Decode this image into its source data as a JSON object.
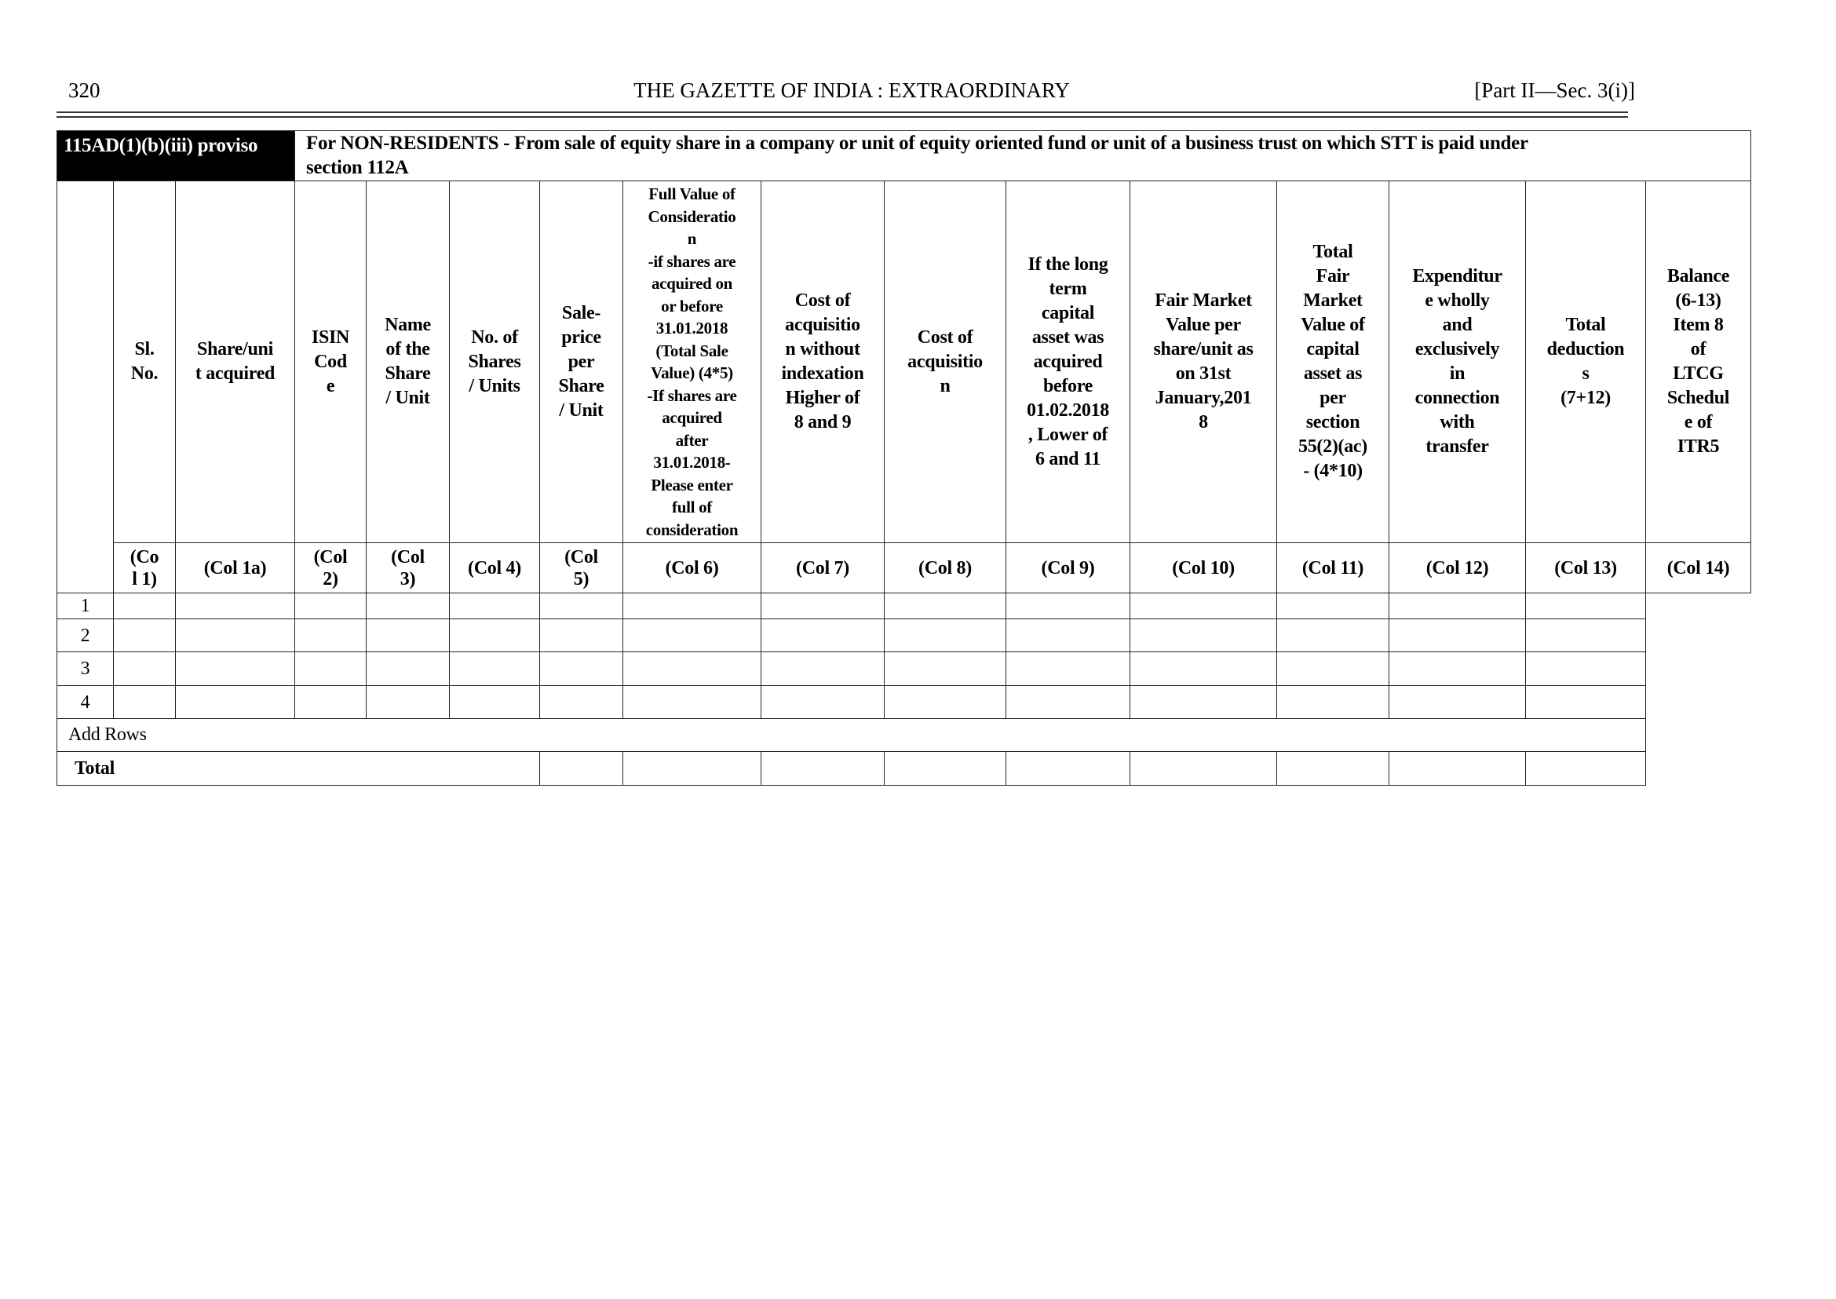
{
  "page_header": {
    "page_number": "320",
    "title": "THE GAZETTE OF INDIA : EXTRAORDINARY",
    "part": "[Part II—Sec. 3(i)]"
  },
  "schedule": {
    "section": "115AD(1)(b)(iii) proviso",
    "description": "For NON-RESIDENTS - From sale of equity share in a company or unit of equity oriented fund or unit of a business trust on which STT is paid under\nsection 112A",
    "columns": [
      {
        "header": "Sl.\nNo.",
        "code": "(Co\nl 1)"
      },
      {
        "header": "Share/uni\nt acquired",
        "code": "(Col 1a)"
      },
      {
        "header": "ISIN\nCod\ne",
        "code": "(Col\n2)"
      },
      {
        "header": "Name\nof the\nShare\n/ Unit",
        "code": "(Col\n3)"
      },
      {
        "header": "No. of\nShares\n/ Units",
        "code": "(Col 4)"
      },
      {
        "header": "Sale-\nprice\nper\nShare\n/ Unit",
        "code": "(Col\n5)"
      },
      {
        "header": "Full Value of\nConsideratio\nn\n-if shares are\nacquired on\nor before\n31.01.2018\n(Total Sale\nValue) (4*5)\n-If shares are\nacquired\nafter\n31.01.2018-\nPlease enter\nfull of\nconsideration",
        "code": "(Col 6)"
      },
      {
        "header": "Cost of\nacquisitio\nn without\nindexation\nHigher of\n8 and 9",
        "code": "(Col 7)"
      },
      {
        "header": "Cost of\nacquisitio\nn",
        "code": "(Col 8)"
      },
      {
        "header": "If the long\nterm\ncapital\nasset was\nacquired\nbefore\n01.02.2018\n, Lower of\n6 and 11",
        "code": "(Col 9)"
      },
      {
        "header": "Fair Market\nValue per\nshare/unit as\non 31st\nJanuary,201\n8",
        "code": "(Col 10)"
      },
      {
        "header": "Total\nFair\nMarket\nValue of\ncapital\nasset as\nper\nsection\n55(2)(ac)\n- (4*10)",
        "code": "(Col 11)"
      },
      {
        "header": "Expenditur\ne wholly\nand\nexclusively\nin\nconnection\nwith\ntransfer",
        "code": "(Col 12)"
      },
      {
        "header": "Total\ndeduction\ns\n(7+12)",
        "code": "(Col 13)"
      },
      {
        "header": "Balance\n(6-13)\nItem 8\nof\nLTCG\nSchedul\ne of\nITR5",
        "code": "(Col 14)"
      }
    ],
    "rows": [
      "1",
      "2",
      "3",
      "4"
    ],
    "add_rows_label": "Add Rows",
    "total_label": "Total"
  }
}
